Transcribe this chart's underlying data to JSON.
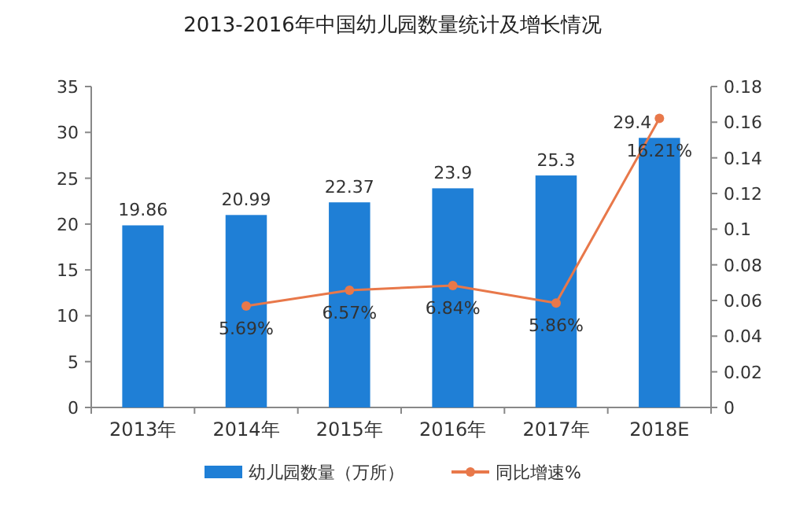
{
  "chart_data": {
    "type": "bar",
    "title": "2013-2016年中国幼儿园数量统计及增长情况",
    "categories": [
      "2013年",
      "2014年",
      "2015年",
      "2016年",
      "2017年",
      "2018E"
    ],
    "series": [
      {
        "name": "幼儿园数量（万所）",
        "color": "#1f7fd6",
        "values": [
          19.86,
          20.99,
          22.37,
          23.9,
          25.3,
          29.4
        ],
        "data_labels": true
      },
      {
        "name": "同比增速%",
        "type": "line",
        "axis": "y2",
        "color": "#e8784a",
        "marker": "circle",
        "values": [
          null,
          0.0569,
          0.0657,
          0.0684,
          0.0586,
          0.1621
        ],
        "value_labels": [
          null,
          "5.69%",
          "6.57%",
          "6.84%",
          "5.86%",
          "16.21%"
        ]
      }
    ],
    "ylim": [
      0,
      35
    ],
    "yticks": [
      0,
      5,
      10,
      15,
      20,
      25,
      30,
      35
    ],
    "y2lim": [
      0,
      0.18
    ],
    "y2ticks": [
      0,
      0.02,
      0.04,
      0.06,
      0.08,
      0.1,
      0.12,
      0.14,
      0.16,
      0.18
    ],
    "legend": "bottom"
  }
}
